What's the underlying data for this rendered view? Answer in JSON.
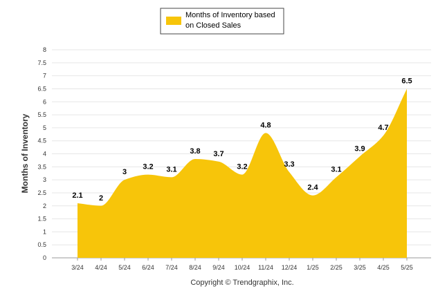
{
  "chart_data": {
    "type": "area",
    "categories": [
      "3/24",
      "4/24",
      "5/24",
      "6/24",
      "7/24",
      "8/24",
      "9/24",
      "10/24",
      "11/24",
      "12/24",
      "1/25",
      "2/25",
      "3/25",
      "4/25",
      "5/25"
    ],
    "series": [
      {
        "name": "Months of Inventory based on Closed Sales",
        "values": [
          2.1,
          2,
          3,
          3.2,
          3.1,
          3.8,
          3.7,
          3.2,
          4.8,
          3.3,
          2.4,
          3.1,
          3.9,
          4.7,
          6.5
        ],
        "color": "#F7C50A"
      }
    ],
    "data_labels": [
      "2.1",
      "2",
      "3",
      "3.2",
      "3.1",
      "3.8",
      "3.7",
      "3.2",
      "4.8",
      "3.3",
      "2.4",
      "3.1",
      "3.9",
      "4.7",
      "6.5"
    ],
    "ylabel": "Months of Inventory",
    "ylim": [
      0,
      8
    ],
    "yticks": [
      "0",
      "0.5",
      "1",
      "1.5",
      "2",
      "2.5",
      "3",
      "3.5",
      "4",
      "4.5",
      "5",
      "5.5",
      "6",
      "6.5",
      "7",
      "7.5",
      "8"
    ],
    "grid": true,
    "legend": {
      "position": "top-center",
      "lines": [
        "Months of Inventory based",
        "on Closed Sales"
      ]
    },
    "footer": "Copyright © Trendgraphix, Inc."
  },
  "colors": {
    "area": "#F7C50A",
    "grid": "#e6e6e6",
    "axis": "#999999"
  }
}
